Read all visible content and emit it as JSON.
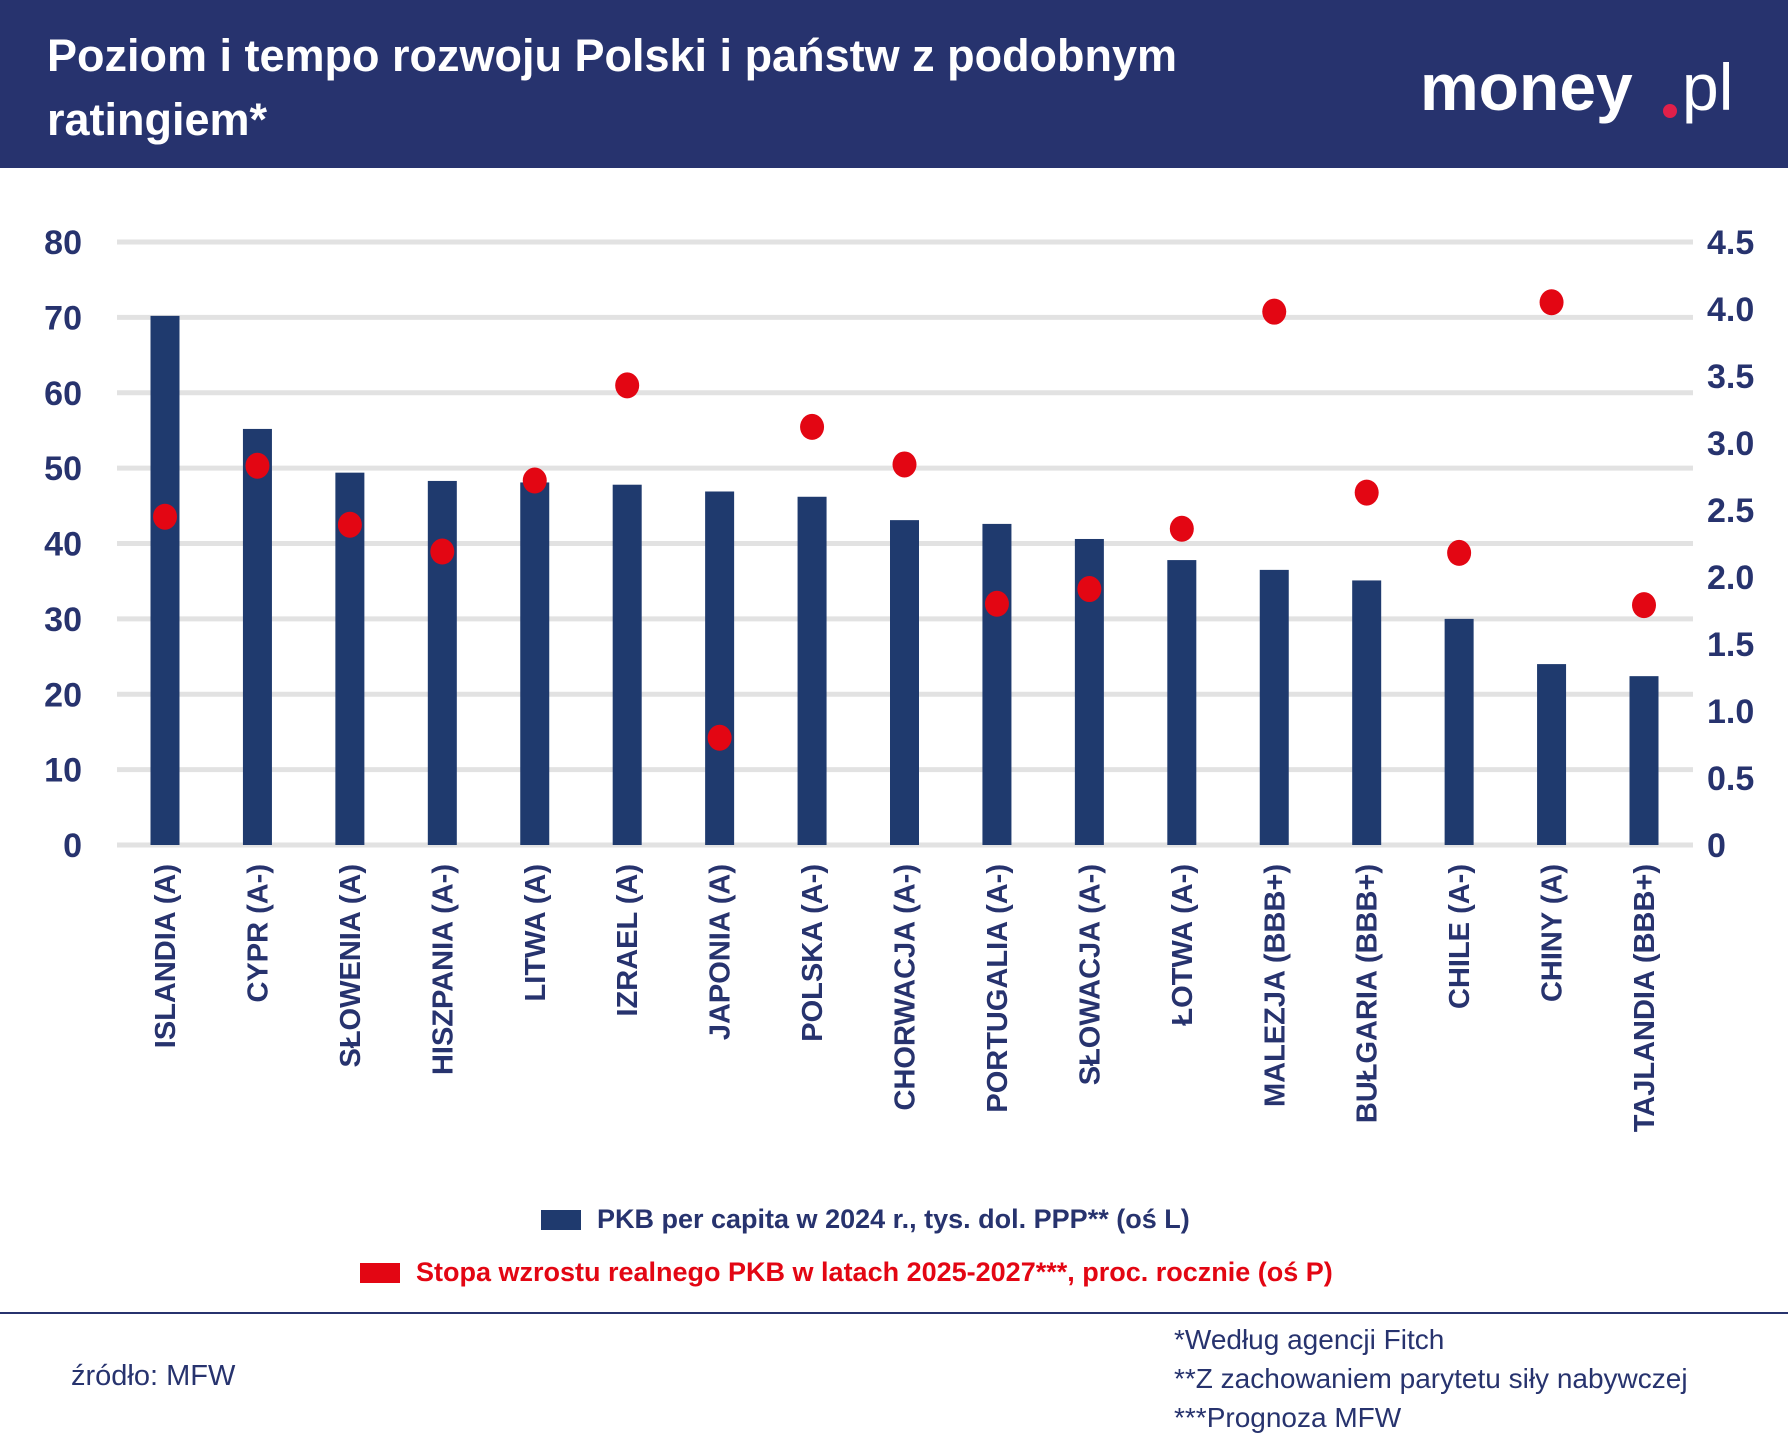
{
  "header": {
    "title": "Poziom i tempo rozwoju Polski i państw z podobnym ratingiem*",
    "logo_text": "money.pl",
    "background": "#27336e"
  },
  "chart_data": {
    "type": "bar",
    "categories": [
      "ISLANDIA (A)",
      "CYPR (A-)",
      "SŁOWENIA (A)",
      "HISZPANIA (A-)",
      "LITWA (A)",
      "IZRAEL (A)",
      "JAPONIA (A)",
      "POLSKA (A-)",
      "CHORWACJA (A-)",
      "PORTUGALIA (A-)",
      "SŁOWACJA (A-)",
      "ŁOTWA (A-)",
      "MALEZJA (BBB+)",
      "BUŁGARIA (BBB+)",
      "CHILE (A-)",
      "CHINY (A)",
      "TAJLANDIA (BBB+)"
    ],
    "series": [
      {
        "name": "PKB per capita w 2024 r., tys. dol. PPP** (oś L)",
        "type": "bar",
        "axis": "left",
        "color": "#1f3a6e",
        "values": [
          70.2,
          55.2,
          49.4,
          48.3,
          48.1,
          47.8,
          46.9,
          46.2,
          43.1,
          42.6,
          40.6,
          37.8,
          36.5,
          35.1,
          30.0,
          24.0,
          22.4
        ]
      },
      {
        "name": "Stopa wzrostu realnego PKB w latach 2025-2027***, proc. rocznie (oś P)",
        "type": "scatter",
        "axis": "right",
        "color": "#e30613",
        "values": [
          2.45,
          2.83,
          2.39,
          2.19,
          2.72,
          3.43,
          0.8,
          3.12,
          2.84,
          1.8,
          1.91,
          2.36,
          3.98,
          2.63,
          2.18,
          4.05,
          1.79
        ]
      }
    ],
    "y_left": {
      "range": [
        0,
        80
      ],
      "ticks": [
        "0",
        "10",
        "20",
        "30",
        "40",
        "50",
        "60",
        "70",
        "80"
      ]
    },
    "y_right": {
      "range": [
        0,
        4.5
      ],
      "ticks": [
        "0",
        "0.5",
        "1.0",
        "1.5",
        "2.0",
        "2.5",
        "3.0",
        "3.5",
        "4.0",
        "4.5"
      ]
    },
    "grid": true,
    "legend_placement": "bottom"
  },
  "footer": {
    "source": "źródło: MFW",
    "notes": [
      "*Według agencji Fitch",
      "**Z zachowaniem parytetu siły nabywczej",
      "***Prognoza MFW"
    ]
  }
}
